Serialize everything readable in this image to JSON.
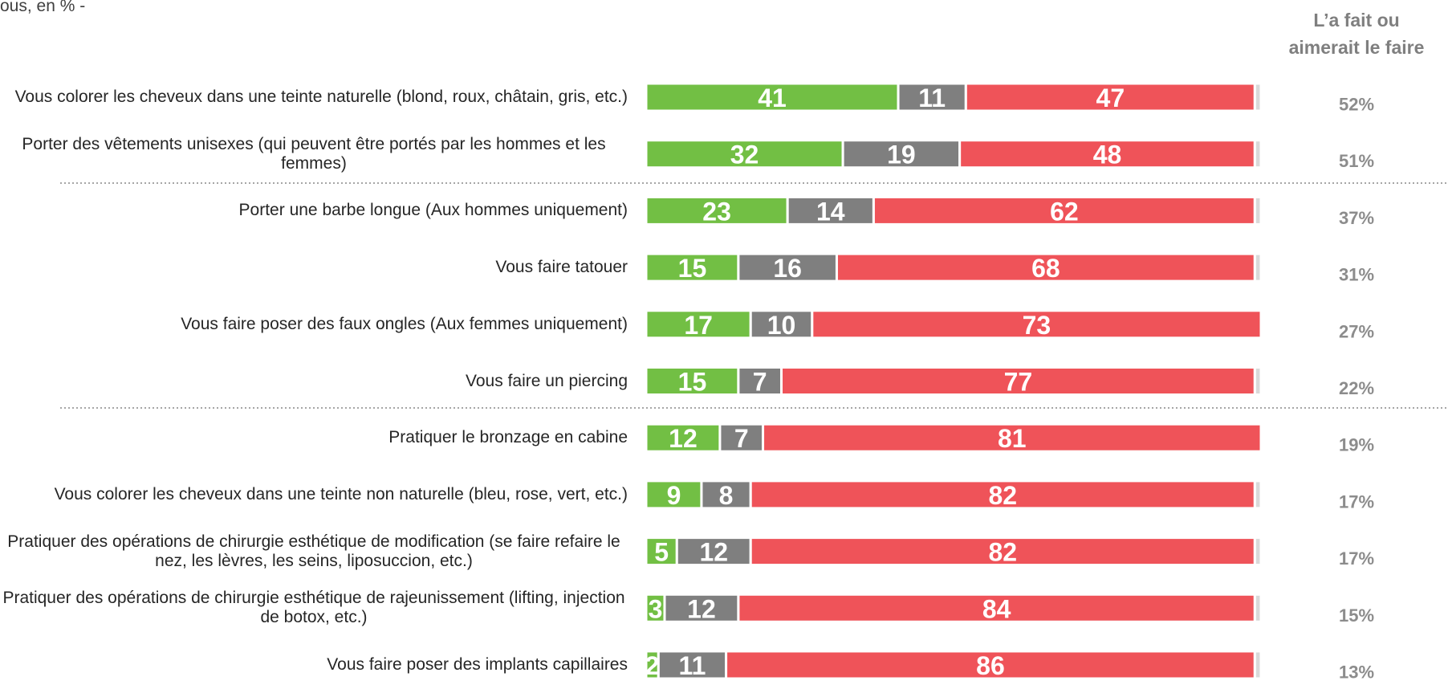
{
  "chart_data": {
    "type": "stacked-bar-horizontal",
    "subtitle": "ous, en % -",
    "categories": [
      "Vous colorer les cheveux dans une teinte naturelle (blond, roux, châtain, gris, etc.)",
      "Porter des vêtements unisexes (qui peuvent être portés par les hommes et les femmes)",
      "Porter une barbe longue (Aux hommes uniquement)",
      "Vous faire tatouer",
      "Vous faire poser des faux ongles (Aux femmes uniquement)",
      "Vous faire un piercing",
      "Pratiquer le bronzage en cabine",
      "Vous colorer les cheveux dans une teinte non naturelle (bleu, rose, vert, etc.)",
      "Pratiquer des opérations de chirurgie esthétique de modification (se faire refaire le nez, les lèvres, les seins, liposuccion, etc.)",
      "Pratiquer des opérations de chirurgie esthétique de rajeunissement (lifting, injection de botox, etc.)",
      "Vous faire poser des implants capillaires"
    ],
    "series": [
      {
        "color": "#72bf44",
        "values": [
          41,
          32,
          23,
          15,
          17,
          15,
          12,
          9,
          5,
          3,
          2
        ]
      },
      {
        "color": "#7f7f7f",
        "values": [
          11,
          19,
          14,
          16,
          10,
          7,
          7,
          8,
          12,
          12,
          11
        ]
      },
      {
        "color": "#ef5359",
        "values": [
          47,
          48,
          62,
          68,
          73,
          77,
          81,
          82,
          82,
          84,
          86
        ]
      },
      {
        "color": "#d9d9d9",
        "values": [
          1,
          1,
          1,
          1,
          0,
          1,
          0,
          1,
          1,
          1,
          1
        ]
      }
    ],
    "totals": {
      "name": "L’a fait ou aimerait le faire",
      "values": [
        52,
        51,
        37,
        31,
        27,
        22,
        19,
        17,
        17,
        15,
        13
      ],
      "value_labels": [
        "52%",
        "51%",
        "37%",
        "31%",
        "27%",
        "22%",
        "19%",
        "17%",
        "17%",
        "15%",
        "13%"
      ]
    }
  }
}
